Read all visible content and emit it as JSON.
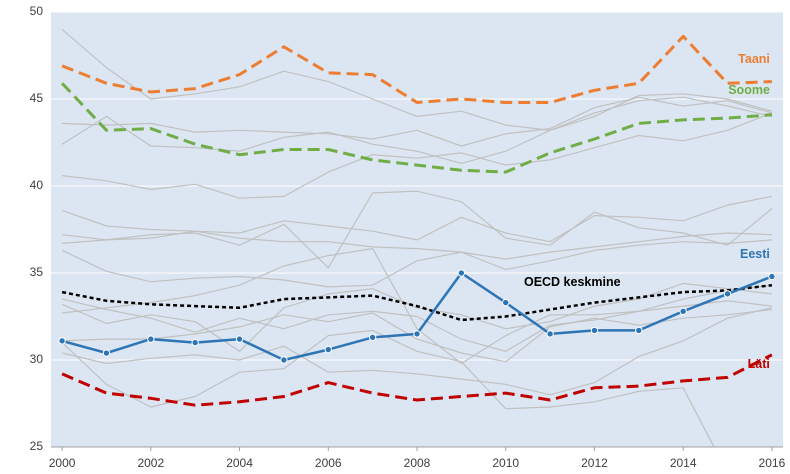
{
  "chart_data": {
    "type": "line",
    "x": [
      2000,
      2001,
      2002,
      2003,
      2004,
      2005,
      2006,
      2007,
      2008,
      2009,
      2010,
      2011,
      2012,
      2013,
      2014,
      2015,
      2016
    ],
    "xlim": [
      1999.75,
      2016.25
    ],
    "xticks": [
      2000,
      2002,
      2004,
      2006,
      2008,
      2010,
      2012,
      2014,
      2016
    ],
    "ylim": [
      25,
      50
    ],
    "yticks": [
      25,
      30,
      35,
      40,
      45,
      50
    ],
    "grid": true,
    "series": [
      {
        "color": "#c0c0c0",
        "style": "solid",
        "values": [
          49.0,
          46.8,
          45.0,
          45.3,
          45.7,
          46.6,
          46.0,
          45.0,
          44.0,
          44.3,
          43.5,
          43.2,
          44.0,
          45.2,
          45.3,
          45.0,
          44.3
        ]
      },
      {
        "color": "#c0c0c0",
        "style": "solid",
        "values": [
          43.6,
          43.5,
          43.6,
          43.1,
          43.2,
          43.1,
          43.0,
          42.7,
          43.2,
          42.3,
          43.0,
          43.3,
          44.5,
          45.1,
          44.6,
          44.9,
          44.2
        ]
      },
      {
        "color": "#c0c0c0",
        "style": "solid",
        "values": [
          42.4,
          44.0,
          42.3,
          42.2,
          42.0,
          42.8,
          43.1,
          42.4,
          42.0,
          41.3,
          42.0,
          43.2,
          44.2,
          44.9,
          45.1,
          44.6,
          44.0
        ]
      },
      {
        "color": "#c0c0c0",
        "style": "solid",
        "values": [
          40.6,
          40.3,
          39.8,
          40.1,
          39.3,
          39.4,
          40.8,
          41.8,
          41.6,
          41.9,
          41.2,
          41.5,
          42.2,
          42.9,
          42.6,
          43.2,
          44.2
        ]
      },
      {
        "color": "#c0c0c0",
        "style": "solid",
        "values": [
          38.6,
          37.7,
          37.5,
          37.4,
          37.3,
          38.0,
          37.7,
          37.4,
          36.9,
          38.2,
          37.3,
          36.8,
          38.3,
          38.2,
          38.0,
          38.9,
          39.4
        ]
      },
      {
        "color": "#c0c0c0",
        "style": "solid",
        "values": [
          37.2,
          36.9,
          37.2,
          37.3,
          36.6,
          37.8,
          35.3,
          39.6,
          39.7,
          39.1,
          37.0,
          36.6,
          38.5,
          37.6,
          37.3,
          36.6,
          38.7
        ]
      },
      {
        "color": "#c0c0c0",
        "style": "solid",
        "values": [
          36.7,
          36.9,
          37.0,
          37.4,
          37.0,
          36.8,
          36.8,
          36.5,
          36.4,
          36.2,
          35.8,
          36.2,
          36.5,
          36.8,
          37.1,
          37.3,
          37.2
        ]
      },
      {
        "color": "#c0c0c0",
        "style": "solid",
        "values": [
          36.3,
          35.1,
          34.5,
          34.7,
          34.8,
          34.6,
          34.2,
          34.3,
          35.7,
          36.2,
          35.2,
          35.7,
          36.3,
          36.6,
          36.8,
          36.7,
          36.9
        ]
      },
      {
        "color": "#c0c0c0",
        "style": "solid",
        "values": [
          33.2,
          32.1,
          32.6,
          32.2,
          30.5,
          33.0,
          33.8,
          34.1,
          33.0,
          32.6,
          31.8,
          32.2,
          33.1,
          33.5,
          34.4,
          34.1,
          33.8
        ]
      },
      {
        "color": "#c0c0c0",
        "style": "solid",
        "values": [
          33.5,
          32.9,
          32.4,
          31.6,
          32.4,
          31.8,
          32.6,
          32.8,
          32.5,
          31.2,
          30.5,
          32.0,
          32.3,
          32.8,
          33.1,
          33.4,
          33.1
        ]
      },
      {
        "color": "#c0c0c0",
        "style": "solid",
        "values": [
          32.7,
          33.0,
          33.3,
          33.7,
          34.3,
          35.4,
          36.0,
          36.4,
          31.8,
          29.8,
          31.4,
          32.6,
          32.6,
          32.8,
          33.5,
          34.0,
          34.3
        ]
      },
      {
        "color": "#c0c0c0",
        "style": "solid",
        "values": [
          31.0,
          28.6,
          27.3,
          27.9,
          29.3,
          29.5,
          31.4,
          31.7,
          30.5,
          29.9,
          27.2,
          27.3,
          27.6,
          28.2,
          28.4,
          23.5,
          null
        ]
      },
      {
        "color": "#c0c0c0",
        "style": "solid",
        "values": [
          30.4,
          29.8,
          30.1,
          30.3,
          30.0,
          30.8,
          29.3,
          29.4,
          29.2,
          28.9,
          28.6,
          28.0,
          28.7,
          30.2,
          31.1,
          32.4,
          33.0
        ]
      },
      {
        "color": "#c0c0c0",
        "style": "solid",
        "values": [
          31.1,
          31.2,
          31.2,
          31.5,
          31.9,
          32.6,
          32.2,
          32.7,
          31.2,
          30.4,
          29.9,
          31.9,
          32.4,
          32.0,
          32.4,
          32.6,
          32.9
        ]
      },
      {
        "name": "Taani",
        "color": "#ed7d31",
        "style": "dashed",
        "values": [
          46.9,
          45.9,
          45.4,
          45.6,
          46.4,
          48.0,
          46.5,
          46.4,
          44.8,
          45.0,
          44.8,
          44.8,
          45.5,
          45.9,
          48.6,
          45.9,
          46.0
        ]
      },
      {
        "name": "Soome",
        "color": "#70ad47",
        "style": "dashed",
        "values": [
          45.9,
          43.2,
          43.3,
          42.4,
          41.8,
          42.1,
          42.1,
          41.5,
          41.2,
          40.9,
          40.8,
          41.9,
          42.7,
          43.6,
          43.8,
          43.9,
          44.1
        ]
      },
      {
        "name": "OECD keskmine",
        "color": "#000000",
        "style": "dotted",
        "values": [
          33.9,
          33.4,
          33.2,
          33.1,
          33.0,
          33.5,
          33.6,
          33.7,
          33.1,
          32.3,
          32.5,
          32.9,
          33.3,
          33.6,
          33.9,
          34.0,
          34.3
        ]
      },
      {
        "name": "Eesti",
        "color": "#2e75b6",
        "style": "solid",
        "markers": true,
        "values": [
          31.1,
          30.4,
          31.2,
          31.0,
          31.2,
          30.0,
          30.6,
          31.3,
          31.5,
          35.0,
          33.3,
          31.5,
          31.7,
          31.7,
          32.8,
          33.8,
          34.8
        ]
      },
      {
        "name": "Läti",
        "color": "#c00000",
        "style": "dashed",
        "values": [
          29.2,
          28.1,
          27.8,
          27.4,
          27.6,
          27.9,
          28.7,
          28.1,
          27.7,
          27.9,
          28.1,
          27.7,
          28.4,
          28.5,
          28.8,
          29.0,
          30.3
        ]
      }
    ]
  }
}
